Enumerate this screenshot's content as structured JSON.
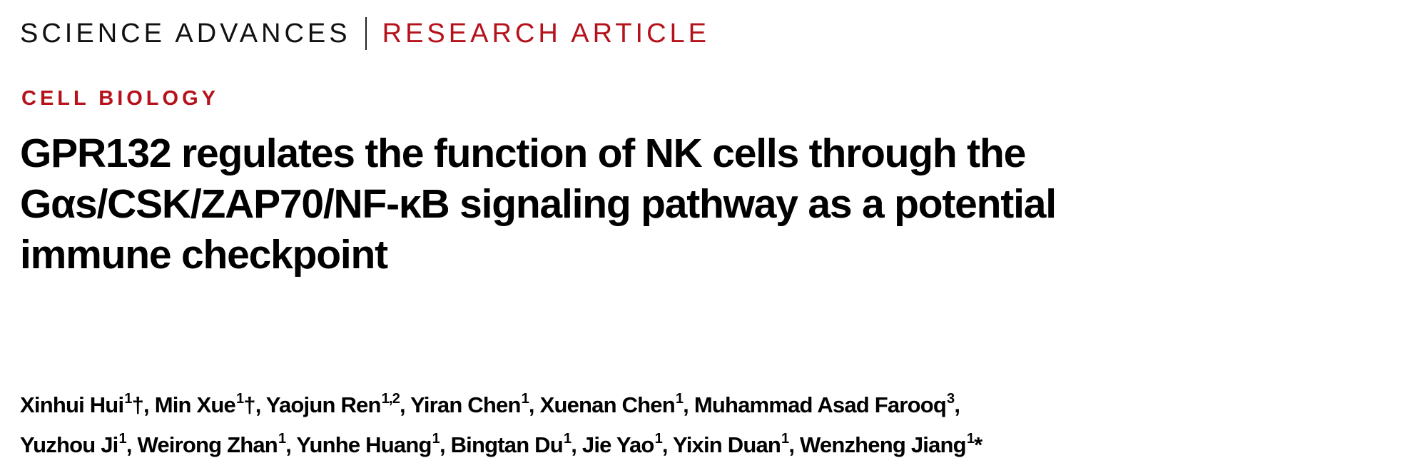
{
  "header": {
    "journal": "SCIENCE ADVANCES",
    "article_type": "RESEARCH ARTICLE",
    "accent_color": "#b5121b"
  },
  "section": "CELL BIOLOGY",
  "title_lines": [
    "GPR132 regulates the function of NK cells through the",
    "Gαs/CSK/ZAP70/NF-κB signaling pathway as a potential",
    "immune checkpoint"
  ],
  "authors": [
    [
      {
        "name": "Xinhui Hui",
        "sup": "1",
        "mark": "†",
        "sep": ", "
      },
      {
        "name": "Min Xue",
        "sup": "1",
        "mark": "†",
        "sep": ", "
      },
      {
        "name": "Yaojun Ren",
        "sup": "1,2",
        "mark": "",
        "sep": ", "
      },
      {
        "name": "Yiran Chen",
        "sup": "1",
        "mark": "",
        "sep": ", "
      },
      {
        "name": "Xuenan Chen",
        "sup": "1",
        "mark": "",
        "sep": ", "
      },
      {
        "name": "Muhammad Asad Farooq",
        "sup": "3",
        "mark": "",
        "sep": ","
      }
    ],
    [
      {
        "name": "Yuzhou Ji",
        "sup": "1",
        "mark": "",
        "sep": ", "
      },
      {
        "name": "Weirong Zhan",
        "sup": "1",
        "mark": "",
        "sep": ", "
      },
      {
        "name": "Yunhe Huang",
        "sup": "1",
        "mark": "",
        "sep": ", "
      },
      {
        "name": "Bingtan Du",
        "sup": "1",
        "mark": "",
        "sep": ", "
      },
      {
        "name": "Jie Yao",
        "sup": "1",
        "mark": "",
        "sep": ", "
      },
      {
        "name": "Yixin Duan",
        "sup": "1",
        "mark": "",
        "sep": ", "
      },
      {
        "name": "Wenzheng Jiang",
        "sup": "1",
        "mark": "*",
        "sep": ""
      }
    ]
  ]
}
